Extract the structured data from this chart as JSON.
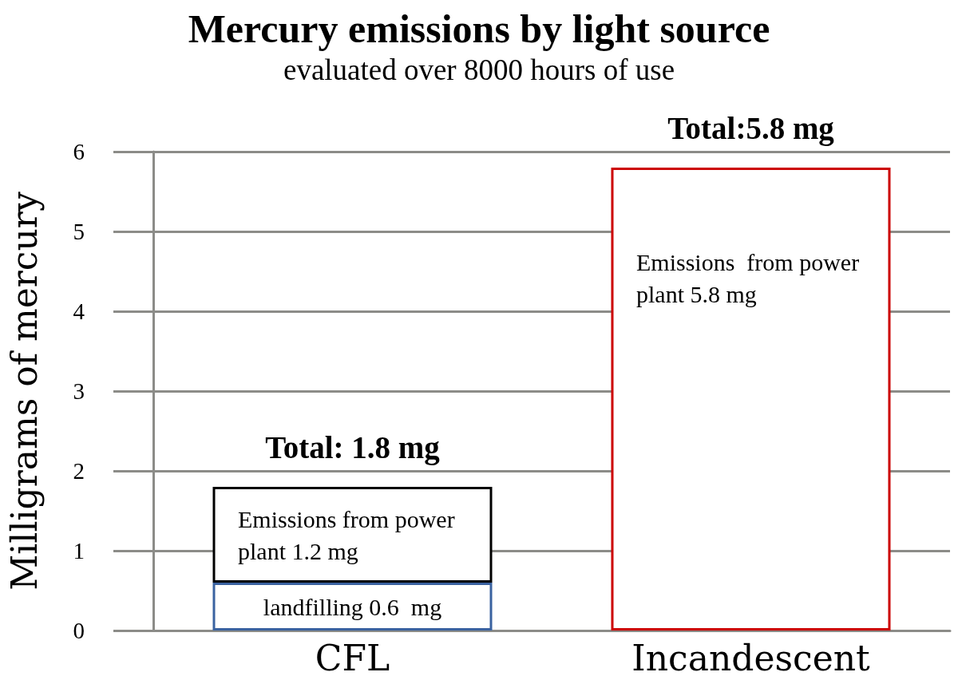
{
  "chart_data": {
    "type": "bar",
    "title": "Mercury emissions by light source",
    "subtitle": "evaluated over 8000 hours of use",
    "ylabel": "Milligrams of mercury",
    "categories": [
      "CFL",
      "Incandescent"
    ],
    "stacked": true,
    "series": [
      {
        "color": "#3a62a0",
        "values": [
          0.6,
          null
        ],
        "value_labels": [
          "landfilling 0.6  mg",
          null
        ]
      },
      {
        "colors": [
          "#000000",
          "#cc0000"
        ],
        "values": [
          1.2,
          5.8
        ],
        "value_labels": [
          "Emissions from power plant 1.2 mg",
          "Emissions  from power plant 5.8 mg"
        ]
      }
    ],
    "totals": [
      "Total: 1.8 mg",
      "Total:5.8 mg"
    ],
    "ylim": [
      0,
      6
    ],
    "yticks": [
      0,
      1,
      2,
      3,
      4,
      5,
      6
    ],
    "grid": "y"
  }
}
